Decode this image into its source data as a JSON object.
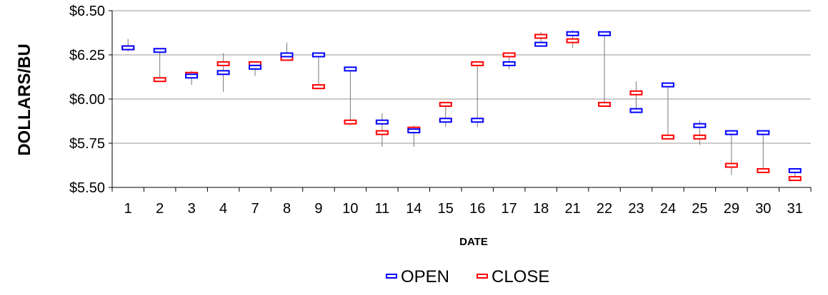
{
  "chart_data": {
    "type": "candlestick-open-close",
    "xlabel": "DATE",
    "ylabel": "DOLLARS/BU",
    "ylim": [
      5.5,
      6.5
    ],
    "yticks": [
      {
        "value": 5.5,
        "label": "$5.50"
      },
      {
        "value": 5.75,
        "label": "$5.75"
      },
      {
        "value": 6.0,
        "label": "$6.00"
      },
      {
        "value": 6.25,
        "label": "$6.25"
      },
      {
        "value": 6.5,
        "label": "$6.50"
      }
    ],
    "grid": true,
    "legend_position": "bottom",
    "categories": [
      "1",
      "2",
      "3",
      "4",
      "7",
      "8",
      "9",
      "10",
      "11",
      "14",
      "15",
      "16",
      "17",
      "18",
      "21",
      "22",
      "23",
      "24",
      "25",
      "29",
      "30",
      "31"
    ],
    "series": [
      {
        "name": "OPEN",
        "color": "#0000ff",
        "values": [
          6.29,
          6.275,
          6.13,
          6.15,
          6.18,
          6.25,
          6.25,
          6.17,
          5.87,
          5.82,
          5.88,
          5.88,
          6.2,
          6.31,
          6.37,
          6.37,
          5.935,
          6.08,
          5.85,
          5.81,
          5.81,
          5.595
        ]
      },
      {
        "name": "CLOSE",
        "color": "#ff0000",
        "values": [
          6.29,
          6.11,
          6.14,
          6.2,
          6.2,
          6.23,
          6.07,
          5.87,
          5.81,
          5.83,
          5.97,
          6.2,
          6.25,
          6.355,
          6.33,
          5.97,
          6.035,
          5.785,
          5.785,
          5.625,
          5.595,
          5.55
        ]
      }
    ],
    "high": [
      6.34,
      6.275,
      6.16,
      6.26,
      6.21,
      6.32,
      6.25,
      6.17,
      5.92,
      5.85,
      5.97,
      6.2,
      6.26,
      6.38,
      6.39,
      6.37,
      6.1,
      6.08,
      5.88,
      5.81,
      5.81,
      5.6
    ],
    "low": [
      6.27,
      6.11,
      6.08,
      6.04,
      6.13,
      6.22,
      6.07,
      5.85,
      5.73,
      5.73,
      5.84,
      5.84,
      6.17,
      6.31,
      6.29,
      5.97,
      5.935,
      5.785,
      5.74,
      5.57,
      5.59,
      5.54
    ]
  }
}
